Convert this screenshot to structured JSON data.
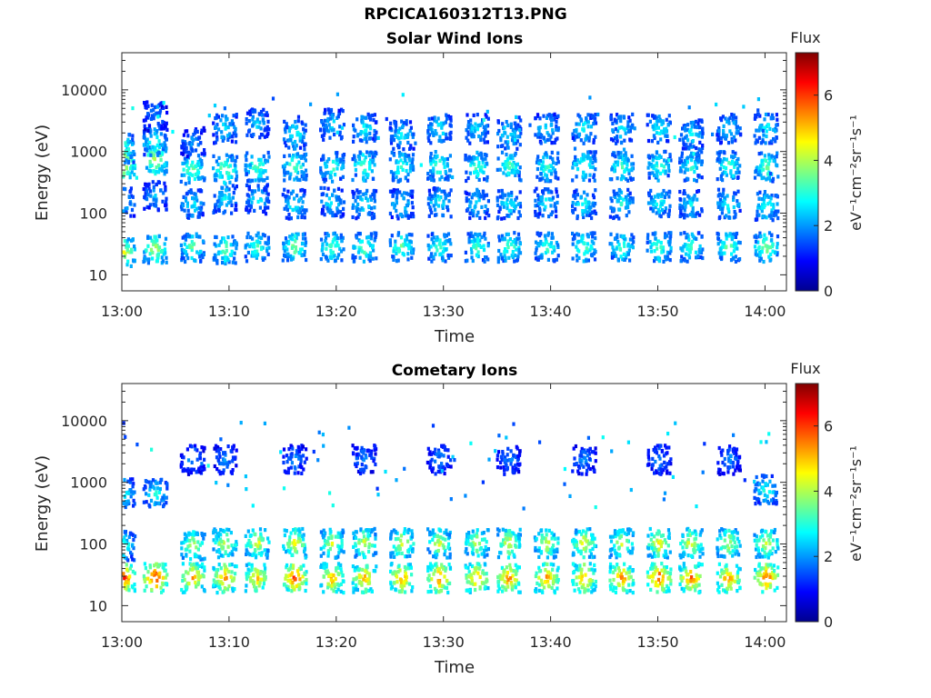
{
  "figure_title": "RPCICA160312T13.PNG",
  "chart_data": [
    {
      "type": "heatmap",
      "title": "Solar Wind Ions",
      "xlabel": "Time",
      "ylabel": "Energy (eV)",
      "x_ticks": [
        "13:00",
        "13:10",
        "13:20",
        "13:30",
        "13:40",
        "13:50",
        "14:00"
      ],
      "x_range": [
        "13:00",
        "14:02"
      ],
      "y_ticks": [
        "10",
        "100",
        "1000",
        "10000"
      ],
      "y_scale": "log",
      "y_range": [
        5.5,
        40000
      ],
      "colorbar": {
        "label": "Flux",
        "unit_label": "eV⁻¹cm⁻²sr⁻¹s⁻¹",
        "ticks": [
          "0",
          "2",
          "4",
          "6"
        ],
        "range": [
          0,
          7.3
        ]
      },
      "bursts": [
        {
          "t": 0.0,
          "bands": [
            [
              700,
              5.0
            ],
            [
              1200,
              3.6
            ],
            [
              25,
              4.6
            ],
            [
              160,
              2.6
            ]
          ]
        },
        {
          "t": 3.0,
          "bands": [
            [
              800,
              4.4
            ],
            [
              1500,
              3.2
            ],
            [
              28,
              4.2
            ],
            [
              200,
              2.4
            ],
            [
              4000,
              2.0
            ]
          ]
        },
        {
          "t": 6.5,
          "bands": [
            [
              550,
              3.8
            ],
            [
              30,
              3.6
            ],
            [
              150,
              2.8
            ],
            [
              1500,
              2.2
            ]
          ]
        },
        {
          "t": 9.5,
          "bands": [
            [
              550,
              3.8
            ],
            [
              2500,
              2.8
            ],
            [
              28,
              3.6
            ],
            [
              180,
              2.8
            ]
          ]
        },
        {
          "t": 12.5,
          "bands": [
            [
              600,
              3.6
            ],
            [
              30,
              3.4
            ],
            [
              180,
              2.8
            ],
            [
              3000,
              2.6
            ]
          ]
        },
        {
          "t": 16.0,
          "bands": [
            [
              620,
              3.6
            ],
            [
              2000,
              3.0
            ],
            [
              30,
              3.8
            ],
            [
              150,
              3.0
            ]
          ]
        },
        {
          "t": 19.5,
          "bands": [
            [
              600,
              3.4
            ],
            [
              3000,
              2.6
            ],
            [
              30,
              3.6
            ],
            [
              160,
              2.8
            ]
          ]
        },
        {
          "t": 22.5,
          "bands": [
            [
              620,
              3.6
            ],
            [
              2500,
              3.0
            ],
            [
              30,
              3.6
            ],
            [
              150,
              3.0
            ]
          ]
        },
        {
          "t": 26.0,
          "bands": [
            [
              600,
              3.4
            ],
            [
              2000,
              2.8
            ],
            [
              30,
              3.6
            ],
            [
              150,
              2.8
            ]
          ]
        },
        {
          "t": 29.5,
          "bands": [
            [
              620,
              3.6
            ],
            [
              2500,
              3.0
            ],
            [
              30,
              3.4
            ],
            [
              160,
              3.0
            ]
          ]
        },
        {
          "t": 33.0,
          "bands": [
            [
              600,
              3.4
            ],
            [
              2500,
              2.8
            ],
            [
              30,
              3.4
            ],
            [
              150,
              2.8
            ]
          ]
        },
        {
          "t": 36.0,
          "bands": [
            [
              620,
              3.4
            ],
            [
              2000,
              2.8
            ],
            [
              30,
              3.6
            ],
            [
              150,
              3.0
            ]
          ]
        },
        {
          "t": 39.5,
          "bands": [
            [
              600,
              3.2
            ],
            [
              2500,
              2.8
            ],
            [
              30,
              3.4
            ],
            [
              160,
              2.8
            ]
          ]
        },
        {
          "t": 43.0,
          "bands": [
            [
              620,
              3.4
            ],
            [
              2500,
              3.0
            ],
            [
              30,
              3.6
            ],
            [
              150,
              3.0
            ]
          ]
        },
        {
          "t": 46.5,
          "bands": [
            [
              600,
              3.4
            ],
            [
              2500,
              2.8
            ],
            [
              30,
              3.4
            ],
            [
              150,
              3.0
            ]
          ]
        },
        {
          "t": 50.0,
          "bands": [
            [
              620,
              3.4
            ],
            [
              2500,
              3.0
            ],
            [
              30,
              3.6
            ],
            [
              160,
              3.0
            ]
          ]
        },
        {
          "t": 53.0,
          "bands": [
            [
              600,
              3.2
            ],
            [
              2000,
              2.8
            ],
            [
              30,
              3.4
            ],
            [
              150,
              2.8
            ]
          ]
        },
        {
          "t": 56.5,
          "bands": [
            [
              620,
              3.4
            ],
            [
              2500,
              2.8
            ],
            [
              30,
              3.6
            ],
            [
              150,
              3.0
            ]
          ]
        },
        {
          "t": 60.0,
          "bands": [
            [
              600,
              3.6
            ],
            [
              2500,
              3.0
            ],
            [
              30,
              3.8
            ],
            [
              140,
              3.2
            ]
          ]
        }
      ]
    },
    {
      "type": "heatmap",
      "title": "Cometary Ions",
      "xlabel": "Time",
      "ylabel": "Energy (eV)",
      "x_ticks": [
        "13:00",
        "13:10",
        "13:20",
        "13:30",
        "13:40",
        "13:50",
        "14:00"
      ],
      "x_range": [
        "13:00",
        "14:02"
      ],
      "y_ticks": [
        "10",
        "100",
        "1000",
        "10000"
      ],
      "y_scale": "log",
      "y_range": [
        5.5,
        40000
      ],
      "colorbar": {
        "label": "Flux",
        "unit_label": "eV⁻¹cm⁻²sr⁻¹s⁻¹",
        "ticks": [
          "0",
          "2",
          "4",
          "6"
        ],
        "range": [
          0,
          7.3
        ]
      },
      "bursts": [
        {
          "t": 0.0,
          "bands": [
            [
              30,
              6.4
            ],
            [
              100,
              3.2
            ],
            [
              700,
              3.0
            ]
          ]
        },
        {
          "t": 3.0,
          "bands": [
            [
              30,
              6.4
            ],
            [
              700,
              3.0
            ]
          ]
        },
        {
          "t": 6.5,
          "bands": [
            [
              30,
              5.6
            ],
            [
              100,
              4.4
            ],
            [
              2500,
              2.0
            ]
          ]
        },
        {
          "t": 9.5,
          "bands": [
            [
              30,
              5.6
            ],
            [
              110,
              4.4
            ],
            [
              2500,
              2.0
            ]
          ]
        },
        {
          "t": 12.5,
          "bands": [
            [
              30,
              5.2
            ],
            [
              110,
              4.6
            ]
          ]
        },
        {
          "t": 16.0,
          "bands": [
            [
              30,
              6.2
            ],
            [
              110,
              4.8
            ],
            [
              2500,
              2.0
            ]
          ]
        },
        {
          "t": 19.5,
          "bands": [
            [
              30,
              5.4
            ],
            [
              110,
              4.4
            ]
          ]
        },
        {
          "t": 22.5,
          "bands": [
            [
              30,
              5.4
            ],
            [
              110,
              4.4
            ],
            [
              2500,
              2.0
            ]
          ]
        },
        {
          "t": 26.0,
          "bands": [
            [
              30,
              5.6
            ],
            [
              110,
              4.6
            ]
          ]
        },
        {
          "t": 29.5,
          "bands": [
            [
              30,
              5.8
            ],
            [
              110,
              4.4
            ],
            [
              2500,
              2.0
            ]
          ]
        },
        {
          "t": 33.0,
          "bands": [
            [
              30,
              5.6
            ],
            [
              110,
              4.4
            ]
          ]
        },
        {
          "t": 36.0,
          "bands": [
            [
              30,
              5.8
            ],
            [
              110,
              4.6
            ],
            [
              2500,
              2.0
            ]
          ]
        },
        {
          "t": 39.5,
          "bands": [
            [
              30,
              5.6
            ],
            [
              110,
              4.4
            ]
          ]
        },
        {
          "t": 43.0,
          "bands": [
            [
              30,
              5.6
            ],
            [
              110,
              4.6
            ],
            [
              2500,
              2.0
            ]
          ]
        },
        {
          "t": 46.5,
          "bands": [
            [
              30,
              5.8
            ],
            [
              110,
              4.4
            ]
          ]
        },
        {
          "t": 50.0,
          "bands": [
            [
              30,
              6.2
            ],
            [
              110,
              4.8
            ],
            [
              2500,
              2.0
            ]
          ]
        },
        {
          "t": 53.0,
          "bands": [
            [
              30,
              5.8
            ],
            [
              110,
              4.6
            ]
          ]
        },
        {
          "t": 56.5,
          "bands": [
            [
              30,
              5.6
            ],
            [
              110,
              4.4
            ],
            [
              2500,
              2.0
            ]
          ]
        },
        {
          "t": 60.0,
          "bands": [
            [
              30,
              6.0
            ],
            [
              110,
              4.6
            ],
            [
              800,
              3.0
            ]
          ]
        }
      ]
    }
  ]
}
